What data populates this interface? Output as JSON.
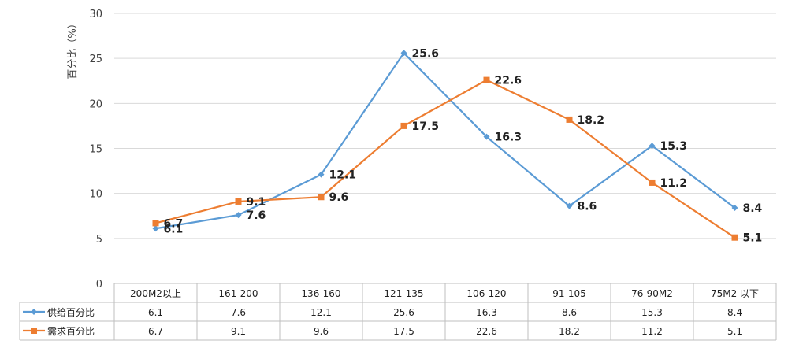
{
  "chart_data": {
    "type": "line",
    "ylabel": "百分比（%）",
    "ylim": [
      0,
      30
    ],
    "yticks": [
      0,
      5,
      10,
      15,
      20,
      25,
      30
    ],
    "grid": true,
    "legend": "data-table-left",
    "categories": [
      "200M2以上",
      "161-200",
      "136-160",
      "121-135",
      "106-120",
      "91-105",
      "76-90M2",
      "75M2 以下"
    ],
    "series": [
      {
        "name": "供给百分比",
        "color": "#5B9BD5",
        "marker": "diamond",
        "values": [
          6.1,
          7.6,
          12.1,
          25.6,
          16.3,
          8.6,
          15.3,
          8.4
        ]
      },
      {
        "name": "需求百分比",
        "color": "#ED7D31",
        "marker": "square",
        "values": [
          6.7,
          9.1,
          9.6,
          17.5,
          22.6,
          18.2,
          11.2,
          5.1
        ]
      }
    ]
  }
}
